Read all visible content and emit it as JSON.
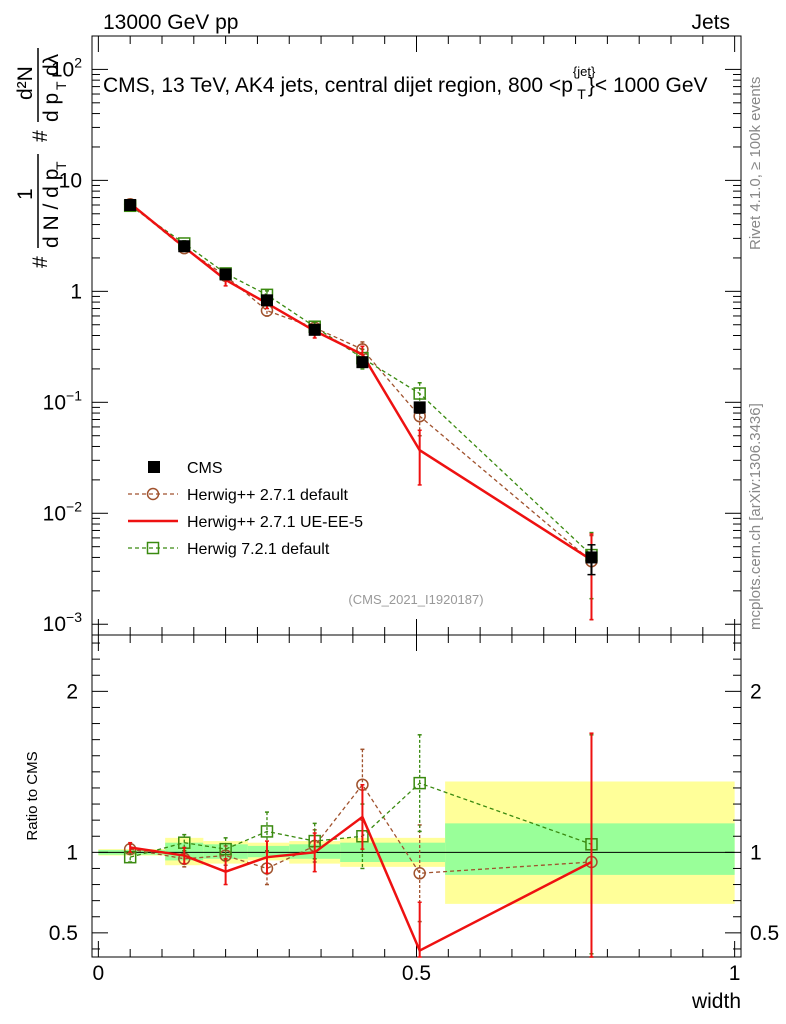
{
  "header": {
    "left": "13000 GeV pp",
    "right": "Jets"
  },
  "side_labels": {
    "rivet": "Rivet 4.1.0, ≥ 100k events",
    "mcplots": "mcplots.cern.ch [arXiv:1306.3436]"
  },
  "colors": {
    "cms": "#000000",
    "herwigpp_default": "#a0522d",
    "herwigpp_ueee5": "#ee1111",
    "herwig7": "#3a8a10",
    "band_inner": "#99ff99",
    "band_outer": "#ffff99"
  },
  "chart_data": [
    {
      "type": "line",
      "panel": "main",
      "title": "CMS, 13 TeV, AK4 jets, central dijet region, 800 <p_T^{jet}< 1000 GeV",
      "title_parts": {
        "prefix": "CMS, 13 TeV, AK4 jets, central dijet region, 800 <p",
        "sup": "{jet}",
        "sub": "T",
        "suffix": "}< 1000 GeV"
      },
      "ylabel": "1/(dN/dp_T) d²N/(dp_T dλ)",
      "ylabel_parts": {
        "hash": "#",
        "one": "1",
        "dN": "d N / d p",
        "T": "T",
        "d2N": "d²N",
        "dpdl": "d p",
        "T2": "T",
        "dl": "dλ"
      },
      "yscale": "log",
      "ylim": [
        0.0008,
        200
      ],
      "xlim": [
        -0.01,
        1.01
      ],
      "yticks": [
        {
          "value": 0.001,
          "label": "10",
          "exp": "−3"
        },
        {
          "value": 0.01,
          "label": "10",
          "exp": "−2"
        },
        {
          "value": 0.1,
          "label": "10",
          "exp": "−1"
        },
        {
          "value": 1,
          "label": "1",
          "exp": ""
        },
        {
          "value": 10,
          "label": "10",
          "exp": ""
        },
        {
          "value": 100,
          "label": "10",
          "exp": "2"
        }
      ],
      "x": [
        0.05,
        0.135,
        0.2,
        0.265,
        0.34,
        0.415,
        0.505,
        0.775
      ],
      "series": [
        {
          "name": "CMS",
          "key": "cms",
          "marker": "filled-square",
          "values": [
            6.0,
            2.55,
            1.42,
            0.83,
            0.45,
            0.23,
            0.09,
            0.004
          ],
          "err": [
            0.35,
            0.15,
            0.1,
            0.06,
            0.04,
            0.02,
            0.01,
            0.0012
          ]
        },
        {
          "name": "Herwig++ 2.7.1 default",
          "key": "herwigpp_default",
          "marker": "open-circle",
          "dash": true,
          "values": [
            6.1,
            2.45,
            1.38,
            0.67,
            0.47,
            0.3,
            0.075,
            0.0037
          ],
          "err": [
            0.3,
            0.15,
            0.12,
            0.07,
            0.05,
            0.05,
            0.025,
            0.0026
          ]
        },
        {
          "name": "Herwig++ 2.7.1 UE-EE-5",
          "key": "herwigpp_ueee5",
          "marker": "none",
          "dash": false,
          "values": [
            6.2,
            2.5,
            1.27,
            0.78,
            0.44,
            0.27,
            0.037,
            0.0038
          ],
          "err": [
            0.3,
            0.15,
            0.15,
            0.08,
            0.06,
            0.05,
            0.019,
            0.0027
          ]
        },
        {
          "name": "Herwig 7.2.1 default",
          "key": "herwig7",
          "marker": "open-square",
          "dash": true,
          "values": [
            5.9,
            2.7,
            1.45,
            0.93,
            0.48,
            0.25,
            0.12,
            0.0042
          ],
          "err": [
            0.3,
            0.15,
            0.12,
            0.08,
            0.05,
            0.05,
            0.03,
            0.0025
          ]
        }
      ],
      "legend": {
        "position": "lower-left",
        "entries": [
          "CMS",
          "Herwig++ 2.7.1 default",
          "Herwig++ 2.7.1 UE-EE-5",
          "Herwig 7.2.1 default"
        ]
      },
      "watermark": "(CMS_2021_I1920187)"
    },
    {
      "type": "line",
      "panel": "ratio",
      "ylabel": "Ratio to CMS",
      "xlabel": "width",
      "ylim": [
        0.35,
        2.35
      ],
      "xlim": [
        -0.01,
        1.01
      ],
      "yticks": [
        0.5,
        1,
        2
      ],
      "xticks": [
        {
          "value": 0,
          "label": "0"
        },
        {
          "value": 0.5,
          "label": "0.5"
        },
        {
          "value": 1,
          "label": "1"
        }
      ],
      "bands": [
        {
          "xlo": 0.0,
          "xhi": 0.105,
          "inner": [
            0.985,
            1.015
          ],
          "outer": [
            0.98,
            1.02
          ]
        },
        {
          "xlo": 0.105,
          "xhi": 0.165,
          "inner": [
            0.95,
            1.06
          ],
          "outer": [
            0.92,
            1.09
          ]
        },
        {
          "xlo": 0.165,
          "xhi": 0.235,
          "inner": [
            0.96,
            1.05
          ],
          "outer": [
            0.93,
            1.07
          ]
        },
        {
          "xlo": 0.235,
          "xhi": 0.3,
          "inner": [
            0.97,
            1.04
          ],
          "outer": [
            0.95,
            1.06
          ]
        },
        {
          "xlo": 0.3,
          "xhi": 0.38,
          "inner": [
            0.96,
            1.05
          ],
          "outer": [
            0.93,
            1.07
          ]
        },
        {
          "xlo": 0.38,
          "xhi": 0.545,
          "inner": [
            0.94,
            1.06
          ],
          "outer": [
            0.91,
            1.09
          ]
        },
        {
          "xlo": 0.545,
          "xhi": 1.0,
          "inner": [
            0.86,
            1.18
          ],
          "outer": [
            0.68,
            1.44
          ]
        }
      ],
      "x": [
        0.05,
        0.135,
        0.2,
        0.265,
        0.34,
        0.415,
        0.505,
        0.775
      ],
      "series": [
        {
          "name": "Herwig++ 2.7.1 default",
          "key": "herwigpp_default",
          "marker": "open-circle",
          "dash": true,
          "values": [
            1.02,
            0.96,
            0.98,
            0.9,
            1.04,
            1.42,
            0.87,
            0.94
          ],
          "err": [
            0.03,
            0.05,
            0.06,
            0.1,
            0.1,
            0.22,
            0.3,
            0.8
          ]
        },
        {
          "name": "Herwig++ 2.7.1 UE-EE-5",
          "key": "herwigpp_ueee5",
          "marker": "none",
          "dash": false,
          "values": [
            1.03,
            0.98,
            0.88,
            0.97,
            1.0,
            1.22,
            0.39,
            0.94
          ],
          "err": [
            0.03,
            0.05,
            0.08,
            0.1,
            0.12,
            0.2,
            0.3,
            0.8
          ]
        },
        {
          "name": "Herwig 7.2.1 default",
          "key": "herwig7",
          "marker": "open-square",
          "dash": true,
          "values": [
            0.97,
            1.06,
            1.02,
            1.13,
            1.07,
            1.1,
            1.43,
            1.05
          ],
          "err": [
            0.03,
            0.05,
            0.07,
            0.12,
            0.11,
            0.2,
            0.3,
            0.68
          ]
        }
      ]
    }
  ]
}
